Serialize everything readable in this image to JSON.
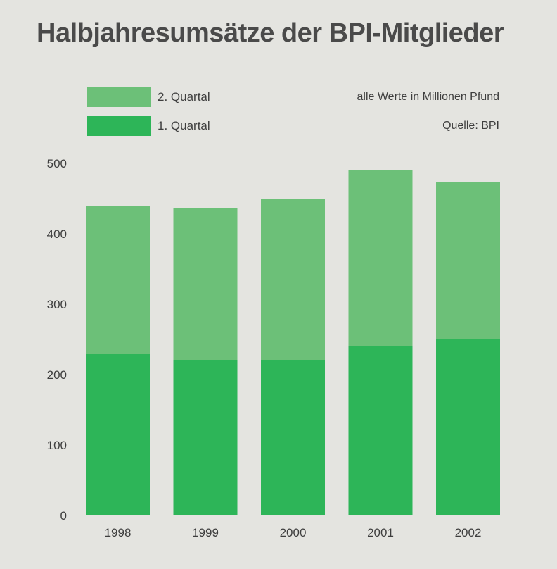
{
  "chart_data": {
    "type": "bar",
    "stacked": true,
    "title": "Halbjahresumsätze der BPI-Mitglieder",
    "unit_note": "alle Werte in Millionen Pfund",
    "source": "Quelle: BPI",
    "categories": [
      "1998",
      "1999",
      "2000",
      "2001",
      "2002"
    ],
    "series": [
      {
        "name": "1. Quartal",
        "color": "#2db558",
        "values": [
          230,
          221,
          221,
          240,
          250
        ]
      },
      {
        "name": "2. Quartal",
        "color": "#6cc078",
        "values": [
          210,
          215,
          229,
          250,
          224
        ]
      }
    ],
    "legend_order": [
      1,
      0
    ],
    "y_ticks": [
      "0",
      "100",
      "200",
      "300",
      "400",
      "500"
    ],
    "ylim": [
      0,
      500
    ],
    "grid": false,
    "legend_position": "top-left",
    "background": "#e4e4e0"
  }
}
